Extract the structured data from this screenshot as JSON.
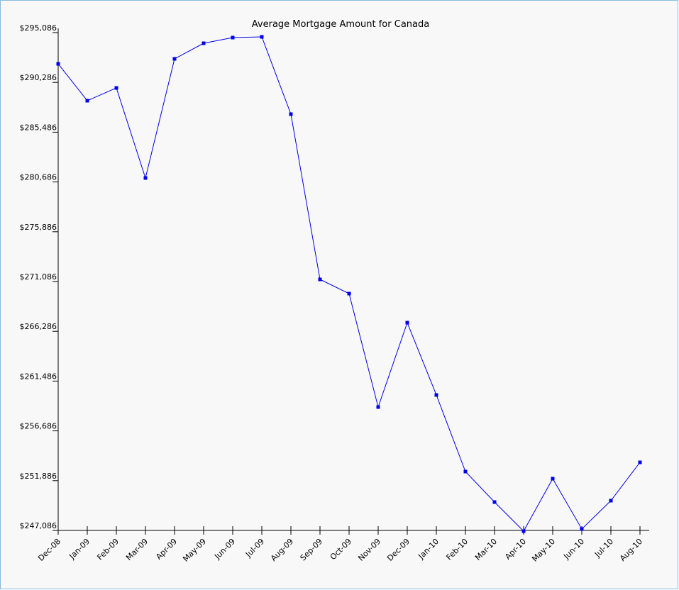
{
  "chart_data": {
    "type": "line",
    "title": "Average Mortgage Amount for Canada",
    "categories": [
      "Dec-08",
      "Jan-09",
      "Feb-09",
      "Mar-09",
      "Apr-09",
      "May-09",
      "Jun-09",
      "Jul-09",
      "Aug-09",
      "Sep-09",
      "Oct-09",
      "Nov-09",
      "Dec-09",
      "Jan-10",
      "Feb-10",
      "Mar-10",
      "Apr-10",
      "May-10",
      "Jun-10",
      "Jul-10",
      "Aug-10"
    ],
    "series": [
      {
        "name": "Average Mortgage Amount",
        "color": "#0000ee",
        "values": [
          292077,
          288522,
          289753,
          281069,
          292556,
          294060,
          294607,
          294676,
          287223,
          271291,
          269923,
          258983,
          267120,
          260146,
          252761,
          249821,
          247018,
          252077,
          247223,
          249958,
          253650
        ]
      }
    ],
    "ylim": [
      247086,
      295086
    ],
    "yticks": [
      {
        "value": 247086,
        "label": "$247,086"
      },
      {
        "value": 251886,
        "label": "$251,886"
      },
      {
        "value": 256686,
        "label": "$256,686"
      },
      {
        "value": 261486,
        "label": "$261,486"
      },
      {
        "value": 266286,
        "label": "$266,286"
      },
      {
        "value": 271086,
        "label": "$271,086"
      },
      {
        "value": 275886,
        "label": "$275,886"
      },
      {
        "value": 280686,
        "label": "$280,686"
      },
      {
        "value": 285486,
        "label": "$285,486"
      },
      {
        "value": 290286,
        "label": "$290,286"
      },
      {
        "value": 295086,
        "label": "$295,086"
      }
    ]
  }
}
